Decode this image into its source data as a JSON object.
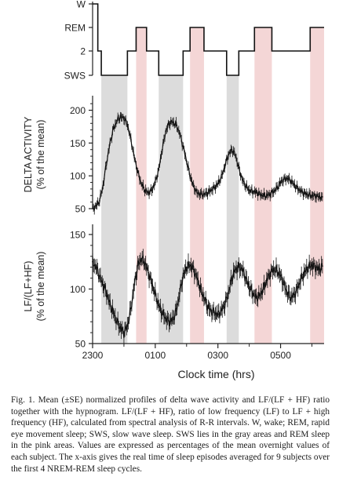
{
  "chart_data": [
    {
      "type": "line",
      "name": "hypnogram",
      "ylabel": "",
      "stage_labels": [
        "W",
        "REM",
        "2",
        "SWS"
      ],
      "x_ticks": [
        "2300",
        "0100",
        "0300",
        "0500"
      ],
      "segments": [
        {
          "from": 0,
          "to": 3,
          "stage": "W"
        },
        {
          "from": 3,
          "to": 5,
          "stage": "2"
        },
        {
          "from": 5,
          "to": 20,
          "stage": "SWS"
        },
        {
          "from": 20,
          "to": 25,
          "stage": "2"
        },
        {
          "from": 25,
          "to": 31,
          "stage": "REM"
        },
        {
          "from": 31,
          "to": 38,
          "stage": "2"
        },
        {
          "from": 38,
          "to": 52,
          "stage": "SWS"
        },
        {
          "from": 52,
          "to": 56,
          "stage": "2"
        },
        {
          "from": 56,
          "to": 64,
          "stage": "REM"
        },
        {
          "from": 64,
          "to": 77,
          "stage": "2"
        },
        {
          "from": 77,
          "to": 84,
          "stage": "SWS"
        },
        {
          "from": 84,
          "to": 93,
          "stage": "2"
        },
        {
          "from": 93,
          "to": 103,
          "stage": "REM"
        },
        {
          "from": 103,
          "to": 125,
          "stage": "2"
        },
        {
          "from": 125,
          "to": 133,
          "stage": "REM"
        }
      ]
    },
    {
      "type": "line",
      "name": "delta",
      "ylabel": "DELTA  ACTIVITY",
      "ylabel2": "(% of the mean)",
      "yticks": [
        "200",
        "150",
        "100",
        "50"
      ],
      "ylim": [
        50,
        215
      ],
      "x": [
        0,
        2,
        4,
        6,
        8,
        10,
        12,
        14,
        16,
        18,
        20,
        22,
        24,
        26,
        28,
        30,
        32,
        34,
        36,
        38,
        40,
        42,
        44,
        46,
        48,
        50,
        52,
        54,
        56,
        58,
        60,
        62,
        64,
        66,
        68,
        70,
        72,
        74,
        76,
        78,
        80,
        82,
        84,
        86,
        88,
        90,
        92,
        94,
        96,
        98,
        100,
        102,
        104,
        106,
        108,
        110,
        112,
        114,
        116,
        118,
        120,
        122,
        124,
        126,
        128,
        130,
        132
      ],
      "values": [
        50,
        54,
        62,
        85,
        120,
        150,
        172,
        184,
        190,
        188,
        178,
        155,
        128,
        105,
        88,
        78,
        74,
        78,
        90,
        110,
        140,
        168,
        180,
        182,
        178,
        165,
        145,
        122,
        100,
        84,
        74,
        72,
        72,
        74,
        78,
        82,
        88,
        98,
        115,
        132,
        140,
        132,
        112,
        94,
        84,
        78,
        76,
        75,
        72,
        70,
        70,
        72,
        76,
        82,
        90,
        95,
        96,
        92,
        86,
        80,
        76,
        73,
        71,
        70,
        69,
        68,
        68
      ]
    },
    {
      "type": "line",
      "name": "lf_ratio",
      "ylabel": "LF/(LF+HF)",
      "ylabel2": "(% of the mean)",
      "yticks": [
        "150",
        "100",
        "50"
      ],
      "ylim": [
        50,
        155
      ],
      "x": [
        0,
        2,
        4,
        6,
        8,
        10,
        12,
        14,
        16,
        18,
        20,
        22,
        24,
        26,
        28,
        30,
        32,
        34,
        36,
        38,
        40,
        42,
        44,
        46,
        48,
        50,
        52,
        54,
        56,
        58,
        60,
        62,
        64,
        66,
        68,
        70,
        72,
        74,
        76,
        78,
        80,
        82,
        84,
        86,
        88,
        90,
        92,
        94,
        96,
        98,
        100,
        102,
        104,
        106,
        108,
        110,
        112,
        114,
        116,
        118,
        120,
        122,
        124,
        126,
        128,
        130,
        132
      ],
      "values": [
        125,
        120,
        112,
        104,
        96,
        86,
        78,
        70,
        64,
        60,
        66,
        82,
        104,
        122,
        128,
        124,
        115,
        105,
        95,
        85,
        78,
        73,
        70,
        72,
        80,
        96,
        112,
        120,
        122,
        118,
        110,
        100,
        92,
        84,
        80,
        78,
        77,
        80,
        86,
        96,
        110,
        118,
        120,
        118,
        110,
        102,
        96,
        92,
        94,
        100,
        108,
        114,
        118,
        117,
        112,
        104,
        96,
        92,
        95,
        102,
        110,
        116,
        120,
        122,
        120,
        118,
        121
      ]
    }
  ],
  "axes": {
    "x_ticks": [
      "2300",
      "0100",
      "0300",
      "0500"
    ],
    "xlabel": "Clock time (hrs)"
  },
  "shading": {
    "sws_color": "#dcdcdc",
    "rem_color": "#f4d6d6",
    "sws_bands": [
      [
        5,
        20
      ],
      [
        38,
        52
      ],
      [
        77,
        84
      ]
    ],
    "rem_bands": [
      [
        25,
        31
      ],
      [
        56,
        64
      ],
      [
        93,
        103
      ],
      [
        125,
        133
      ]
    ]
  },
  "caption": {
    "text": "Fig. 1. Mean (±SE) normalized profiles of delta wave activity and LF/(LF + HF) ratio together with the hypnogram. LF/(LF + HF), ratio of low frequency (LF) to LF + high frequency (HF), calculated from spectral analysis of R-R intervals. W, wake; REM, rapid eye movement sleep; SWS, slow wave sleep. SWS lies in the gray areas and REM sleep in the pink areas. Values are expressed as percentages of the mean overnight values of each subject. The x-axis gives the real time of sleep episodes averaged for 9 subjects over the first 4 NREM-REM sleep cycles."
  }
}
